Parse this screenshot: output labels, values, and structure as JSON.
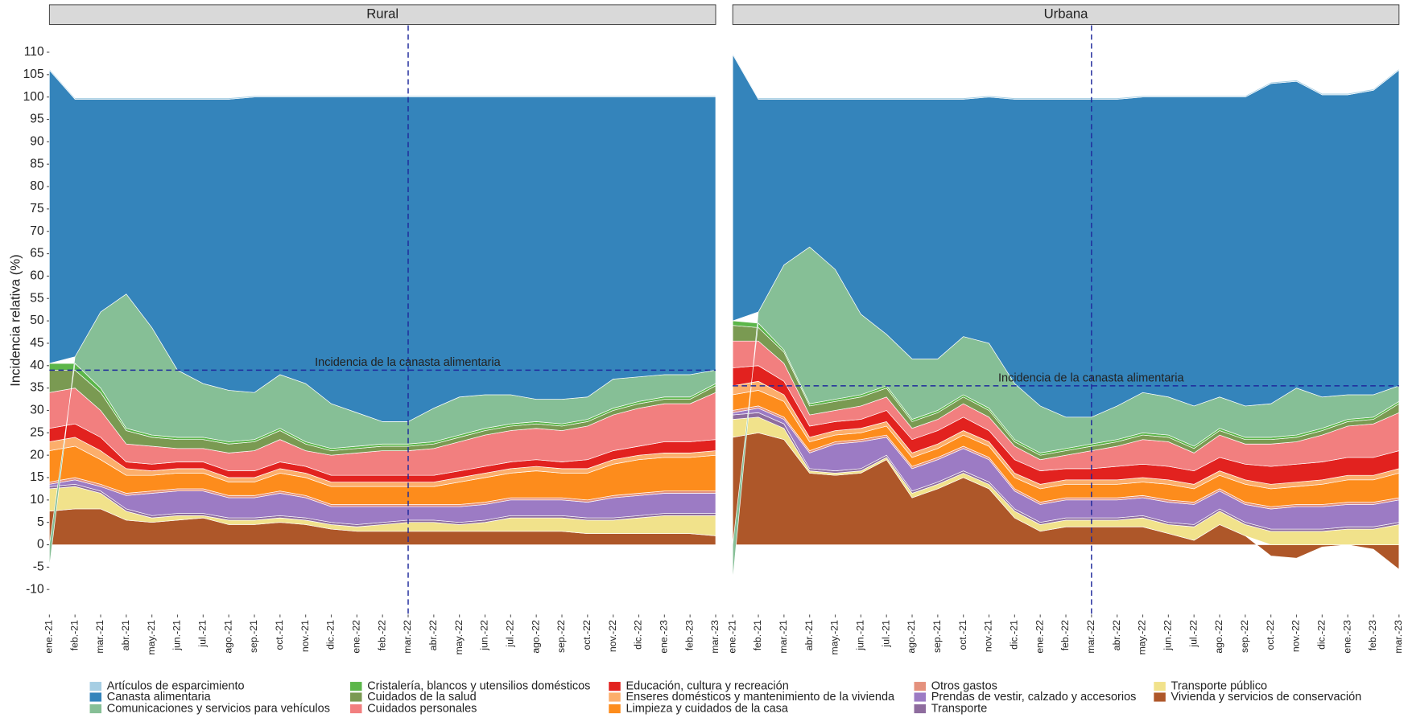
{
  "chart_data": [
    {
      "type": "area",
      "title": "Rural",
      "y_label": "Incidencia relativa (%)",
      "categories": [
        "ene.-21",
        "feb.-21",
        "mar.-21",
        "abr.-21",
        "may.-21",
        "jun.-21",
        "jul.-21",
        "ago.-21",
        "sep.-21",
        "oct.-21",
        "nov.-21",
        "dic.-21",
        "ene.-22",
        "feb.-22",
        "mar.-22",
        "abr.-22",
        "may.-22",
        "jun.-22",
        "jul.-22",
        "ago.-22",
        "sep.-22",
        "oct.-22",
        "nov.-22",
        "dic.-22",
        "ene.-23",
        "feb.-23",
        "mar.-23"
      ],
      "ylim": [
        -15.6,
        116
      ],
      "yticks": [
        -10,
        -5,
        0,
        5,
        10,
        15,
        20,
        25,
        30,
        35,
        40,
        45,
        50,
        55,
        60,
        65,
        70,
        75,
        80,
        85,
        90,
        95,
        100,
        105,
        110
      ],
      "hline": 39,
      "vline": "mar.-22",
      "annotation": "Incidencia de la canasta alimentaria",
      "series": [
        {
          "name": "Artículos de esparcimiento",
          "color": "#a6cee3",
          "values": [
            0.3,
            0.3,
            0.3,
            0.3,
            0.3,
            0.3,
            0.3,
            0.3,
            0.3,
            0.3,
            0.3,
            0.3,
            0.3,
            0.3,
            0.3,
            0.3,
            0.3,
            0.3,
            0.3,
            0.3,
            0.3,
            0.3,
            0.3,
            0.3,
            0.3,
            0.3,
            0.3
          ]
        },
        {
          "name": "Canasta alimentaria",
          "color": "#3484bb",
          "values": [
            65.5,
            57.5,
            47.5,
            43.5,
            51,
            60.5,
            63.5,
            65,
            66,
            62,
            64,
            68.5,
            70.5,
            72.5,
            72.5,
            69.5,
            67,
            66.5,
            66.5,
            67.5,
            67.5,
            67,
            63,
            62.5,
            62,
            62,
            61
          ]
        },
        {
          "name": "Comunicaciones y servicios para vehículos",
          "color": "#86bf96",
          "values": [
            -5,
            1.5,
            17,
            30,
            24,
            15,
            12,
            11.5,
            10.5,
            12,
            13,
            10,
            7.5,
            5,
            5,
            7.5,
            8.5,
            7.5,
            6.5,
            5,
            5.5,
            5,
            6.5,
            5.5,
            5,
            5,
            3
          ]
        },
        {
          "name": "Cristalería, blancos y utensilios domésticos",
          "color": "#5cb64a",
          "values": [
            1.5,
            1.5,
            1,
            0.5,
            0.5,
            0.5,
            0.5,
            0.5,
            0.5,
            0.5,
            0.5,
            0.5,
            0.5,
            0.5,
            0.5,
            0.5,
            0.5,
            0.5,
            0.5,
            0.5,
            0.5,
            0.5,
            0.5,
            0.5,
            0.5,
            0.5,
            0.5
          ]
        },
        {
          "name": "Cuidados de la salud",
          "color": "#7a9a52",
          "values": [
            5,
            4,
            4,
            3,
            2,
            2,
            2,
            2,
            2,
            2,
            1.5,
            1,
            1,
            1,
            1,
            1,
            1,
            1,
            1,
            1,
            1,
            1,
            1,
            1,
            1,
            1,
            1.5
          ]
        },
        {
          "name": "Cuidados personales",
          "color": "#f27f7f",
          "values": [
            8,
            8,
            6,
            4,
            4,
            3,
            3,
            4,
            4.5,
            5,
            3.5,
            4.5,
            5,
            5.5,
            5.5,
            6,
            6.5,
            7,
            7,
            7,
            7,
            7.5,
            8,
            8.5,
            8.5,
            8.5,
            10.5
          ]
        },
        {
          "name": "Educación, cultura y recreación",
          "color": "#e2221f",
          "values": [
            3,
            3,
            3,
            1.5,
            1.5,
            1.5,
            1.5,
            1.5,
            1.5,
            1.5,
            1.5,
            1.5,
            1.5,
            1.5,
            1.5,
            1.5,
            1.5,
            1.5,
            1.5,
            1.5,
            1.5,
            2,
            2,
            2,
            2.5,
            2.5,
            2.5
          ]
        },
        {
          "name": "Enseres domésticos y mantenimiento de la vivienda",
          "color": "#fcae6b",
          "values": [
            2,
            2,
            2,
            1.5,
            1,
            1,
            1,
            1,
            1,
            1,
            1,
            1,
            1,
            1,
            1,
            1,
            1,
            1,
            1,
            1,
            1,
            1,
            1,
            1,
            1,
            1,
            1
          ]
        },
        {
          "name": "Limpieza y cuidados de la casa",
          "color": "#fd8c1c",
          "values": [
            7,
            7,
            5.5,
            4,
            3.5,
            3.5,
            3.5,
            3,
            3,
            4,
            4,
            4,
            4,
            4,
            4,
            4,
            5,
            5.5,
            5.5,
            6,
            5.5,
            6,
            7,
            7.5,
            7.5,
            7.5,
            8
          ]
        },
        {
          "name": "Otros gastos",
          "color": "#e4917d",
          "values": [
            0.5,
            0.5,
            0.5,
            0.5,
            0.5,
            0.5,
            0.5,
            0.5,
            0.5,
            0.5,
            0.5,
            0.5,
            0.5,
            0.5,
            0.5,
            0.5,
            0.5,
            0.5,
            0.5,
            0.5,
            0.5,
            0.5,
            0.5,
            0.5,
            0.5,
            0.5,
            0.5
          ]
        },
        {
          "name": "Prendas de vestir, calzado y accesorios",
          "color": "#9c7bc4",
          "values": [
            0.5,
            1,
            1,
            3,
            5,
            5,
            5,
            4.5,
            4.5,
            5,
            4.5,
            3.5,
            4,
            3.5,
            3,
            3,
            3.5,
            3.5,
            3.5,
            3.5,
            3.5,
            3.5,
            4.5,
            4.5,
            4.5,
            4.5,
            4.5
          ]
        },
        {
          "name": "Transporte",
          "color": "#8e6c9e",
          "values": [
            0.5,
            0.5,
            0.5,
            0.5,
            0.5,
            0.5,
            0.5,
            0.5,
            0.5,
            0.5,
            0.5,
            0.5,
            0.5,
            0.5,
            0.5,
            0.5,
            0.5,
            0.5,
            0.5,
            0.5,
            0.5,
            0.5,
            0.5,
            0.5,
            0.5,
            0.5,
            0.5
          ]
        },
        {
          "name": "Transporte público",
          "color": "#f1e28b",
          "values": [
            5,
            5,
            3.5,
            2,
            1,
            1,
            0.5,
            1,
            1,
            1,
            1,
            1,
            1,
            1.5,
            2,
            2,
            1.5,
            2,
            3,
            3,
            3,
            3,
            3,
            3.5,
            4,
            4,
            4.5
          ]
        },
        {
          "name": "Vivienda y servicios de conservación",
          "color": "#ae5729",
          "values": [
            7.5,
            8,
            8,
            5.5,
            5,
            5.5,
            6,
            4.5,
            4.5,
            5,
            4.5,
            3.5,
            3,
            3,
            3,
            3,
            3,
            3,
            3,
            3,
            3,
            2.5,
            2.5,
            2.5,
            2.5,
            2.5,
            2
          ]
        }
      ]
    },
    {
      "type": "area",
      "title": "Urbana",
      "categories": [
        "ene.-21",
        "feb.-21",
        "mar.-21",
        "abr.-21",
        "may.-21",
        "jun.-21",
        "jul.-21",
        "ago.-21",
        "sep.-21",
        "oct.-21",
        "nov.-21",
        "dic.-21",
        "ene.-22",
        "feb.-22",
        "mar.-22",
        "abr.-22",
        "may.-22",
        "jun.-22",
        "jul.-22",
        "ago.-22",
        "sep.-22",
        "oct.-22",
        "nov.-22",
        "dic.-22",
        "ene.-23",
        "feb.-23",
        "mar.-23"
      ],
      "ylim": [
        -15.6,
        116
      ],
      "hline": 35.5,
      "vline": "mar.-22",
      "annotation": "Incidencia de la canasta alimentaria",
      "series": [
        {
          "name": "Artículos de esparcimiento",
          "color": "#a6cee3",
          "values": [
            0.3,
            0.3,
            0.3,
            0.3,
            0.3,
            0.3,
            0.3,
            0.3,
            0.3,
            0.3,
            0.3,
            0.3,
            0.3,
            0.3,
            0.3,
            0.3,
            0.3,
            0.3,
            0.3,
            0.3,
            0.3,
            0.3,
            0.3,
            0.3,
            0.3,
            0.3,
            0.3
          ]
        },
        {
          "name": "Canasta alimentaria",
          "color": "#3484bb",
          "values": [
            59.5,
            47.5,
            37,
            33,
            38,
            48,
            52.5,
            58,
            58,
            53,
            55,
            63.5,
            68.5,
            71,
            71,
            68.5,
            66,
            67,
            69,
            67,
            69,
            71.5,
            68.5,
            67.5,
            67,
            68,
            70.5
          ]
        },
        {
          "name": "Comunicaciones y servicios para vehículos",
          "color": "#86bf96",
          "values": [
            -8,
            2.5,
            19,
            35,
            29,
            18,
            11.5,
            13.5,
            11.5,
            13,
            14.5,
            12.5,
            10.5,
            7,
            6,
            7.5,
            9,
            8.5,
            9,
            7,
            7,
            7.5,
            10.5,
            7,
            5.5,
            5,
            3.5
          ]
        },
        {
          "name": "Cristalería, blancos y utensilios domésticos",
          "color": "#5cb64a",
          "values": [
            1,
            1,
            0.5,
            0.5,
            0.5,
            0.5,
            0.5,
            0.5,
            0.5,
            0.5,
            0.5,
            0.5,
            0.5,
            0.5,
            0.5,
            0.5,
            0.5,
            0.5,
            0.5,
            0.5,
            0.5,
            0.5,
            0.5,
            0.5,
            0.5,
            0.5,
            0.5
          ]
        },
        {
          "name": "Cuidados de la salud",
          "color": "#7a9a52",
          "values": [
            3.5,
            3,
            2.5,
            2,
            2,
            2,
            2,
            1.5,
            1.5,
            1.5,
            1.5,
            1,
            1,
            1,
            1,
            1,
            1,
            1,
            1,
            1,
            1,
            1,
            1,
            1,
            1,
            1,
            2
          ]
        },
        {
          "name": "Cuidados personales",
          "color": "#f27f7f",
          "values": [
            6,
            5.5,
            4,
            2.5,
            2.5,
            3,
            3,
            2.5,
            2.5,
            3,
            3,
            3,
            2.5,
            3,
            4,
            4.5,
            5.5,
            5.5,
            4,
            5,
            4.5,
            5,
            5,
            6,
            7,
            7.5,
            8.5
          ]
        },
        {
          "name": "Educación, cultura y recreación",
          "color": "#e2221f",
          "values": [
            4,
            3.5,
            3,
            2.5,
            2,
            2,
            2.5,
            3,
            3,
            3,
            2.5,
            3,
            3,
            2.5,
            2.5,
            3,
            3,
            3,
            3,
            3,
            3.5,
            4,
            4,
            4,
            4,
            4,
            4
          ]
        },
        {
          "name": "Enseres domésticos y mantenimiento de la vivienda",
          "color": "#fcae6b",
          "values": [
            2,
            2,
            1.5,
            1,
            1,
            1,
            1,
            1,
            1,
            1,
            1,
            1,
            1,
            1,
            1,
            1,
            1,
            1,
            1,
            1,
            1,
            1,
            1,
            1,
            1,
            1,
            1
          ]
        },
        {
          "name": "Limpieza y cuidados de la casa",
          "color": "#fd8c1c",
          "values": [
            3.5,
            3.5,
            3.5,
            2,
            1.5,
            1.5,
            2,
            2,
            2,
            2.5,
            2.5,
            2.5,
            3,
            3,
            3,
            3,
            3,
            3.5,
            3,
            3,
            4,
            4,
            4,
            4.5,
            5,
            5,
            5.5
          ]
        },
        {
          "name": "Otros gastos",
          "color": "#e4917d",
          "values": [
            0.5,
            0.5,
            0.5,
            0.5,
            0.5,
            0.5,
            0.5,
            0.5,
            0.5,
            0.5,
            0.5,
            0.5,
            0.5,
            0.5,
            0.5,
            0.5,
            0.5,
            0.5,
            0.5,
            0.5,
            0.5,
            0.5,
            0.5,
            0.5,
            0.5,
            0.5,
            0.5
          ]
        },
        {
          "name": "Prendas de vestir, calzado y accesorios",
          "color": "#9c7bc4",
          "values": [
            0.5,
            1,
            1,
            3.5,
            6,
            6,
            4,
            5,
            5,
            5,
            5,
            4,
            4,
            4,
            4,
            4,
            4,
            4.5,
            4.5,
            4,
            4,
            4.5,
            5,
            5,
            5,
            5,
            5
          ]
        },
        {
          "name": "Transporte",
          "color": "#8e6c9e",
          "values": [
            1,
            1,
            1,
            0.5,
            0.5,
            0.5,
            0.5,
            0.5,
            0.5,
            0.5,
            0.5,
            0.5,
            0.5,
            0.5,
            0.5,
            0.5,
            0.5,
            0.5,
            0.5,
            0.5,
            0.5,
            0.5,
            0.5,
            0.5,
            0.5,
            0.5,
            0.5
          ]
        },
        {
          "name": "Transporte público",
          "color": "#f1e28b",
          "values": [
            4,
            3.5,
            2.5,
            0.5,
            0.5,
            0.5,
            0.5,
            1,
            1,
            1,
            1,
            1.5,
            1.5,
            1.5,
            1.5,
            1.5,
            2,
            2,
            3,
            3,
            2.5,
            3,
            3,
            3,
            3.5,
            3.5,
            4.5
          ]
        },
        {
          "name": "Vivienda y servicios de conservación",
          "color": "#ae5729",
          "values": [
            24,
            25,
            23.5,
            16,
            15.5,
            16,
            19,
            10.5,
            12.5,
            15,
            12.5,
            6,
            3,
            4,
            4,
            4,
            4,
            2.5,
            1,
            4.5,
            2,
            -2.5,
            -3,
            -0.5,
            0,
            -1,
            -5.5
          ]
        }
      ]
    }
  ]
}
